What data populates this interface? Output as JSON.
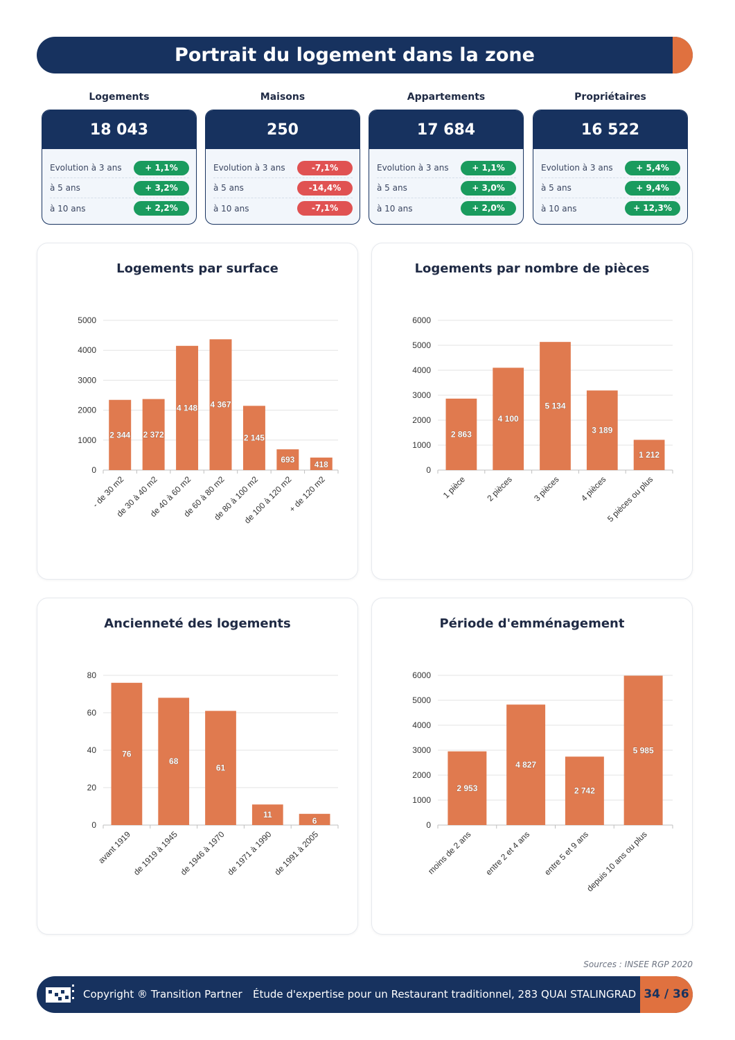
{
  "header": {
    "title": "Portrait du logement dans la zone"
  },
  "stats": [
    {
      "label": "Logements",
      "value": "18 043",
      "rows": [
        {
          "label": "Evolution à 3 ans",
          "value": "+ 1,1%",
          "trend": "pos"
        },
        {
          "label": "à 5 ans",
          "value": "+ 3,2%",
          "trend": "pos"
        },
        {
          "label": "à 10 ans",
          "value": "+ 2,2%",
          "trend": "pos"
        }
      ]
    },
    {
      "label": "Maisons",
      "value": "250",
      "rows": [
        {
          "label": "Evolution à 3 ans",
          "value": "-7,1%",
          "trend": "neg"
        },
        {
          "label": "à 5 ans",
          "value": "-14,4%",
          "trend": "neg"
        },
        {
          "label": "à 10 ans",
          "value": "-7,1%",
          "trend": "neg"
        }
      ]
    },
    {
      "label": "Appartements",
      "value": "17 684",
      "rows": [
        {
          "label": "Evolution à 3 ans",
          "value": "+ 1,1%",
          "trend": "pos"
        },
        {
          "label": "à 5 ans",
          "value": "+ 3,0%",
          "trend": "pos"
        },
        {
          "label": "à 10 ans",
          "value": "+ 2,0%",
          "trend": "pos"
        }
      ]
    },
    {
      "label": "Propriétaires",
      "value": "16 522",
      "rows": [
        {
          "label": "Evolution à 3 ans",
          "value": "+ 5,4%",
          "trend": "pos"
        },
        {
          "label": "à 5 ans",
          "value": "+ 9,4%",
          "trend": "pos"
        },
        {
          "label": "à 10 ans",
          "value": "+ 12,3%",
          "trend": "pos"
        }
      ]
    }
  ],
  "colors": {
    "navy": "#17325f",
    "orange": "#e0713f",
    "bar": "#e07a4f",
    "positive": "#1a9b5e",
    "negative": "#e05252"
  },
  "chart_data": [
    {
      "type": "bar",
      "title": "Logements par surface",
      "categories": [
        "- de 30 m2",
        "de 30 à 40 m2",
        "de 40 à 60 m2",
        "de 60 à 80 m2",
        "de 80 à 100 m2",
        "de 100 à 120 m2",
        "+ de 120 m2"
      ],
      "values": [
        2344,
        2372,
        4148,
        4367,
        2145,
        693,
        418
      ],
      "data_labels": [
        "2 344",
        "2 372",
        "4 148",
        "4 367",
        "2 145",
        "693",
        "418"
      ],
      "ylim": [
        0,
        5000
      ],
      "yticks": [
        0,
        1000,
        2000,
        3000,
        4000,
        5000
      ],
      "grid": true
    },
    {
      "type": "bar",
      "title": "Logements par nombre de pièces",
      "categories": [
        "1 pièce",
        "2 pièces",
        "3 pièces",
        "4 pièces",
        "5 pièces ou plus"
      ],
      "values": [
        2863,
        4100,
        5134,
        3189,
        1212
      ],
      "data_labels": [
        "2 863",
        "4 100",
        "5 134",
        "3 189",
        "1 212"
      ],
      "ylim": [
        0,
        6000
      ],
      "yticks": [
        0,
        1000,
        2000,
        3000,
        4000,
        5000,
        6000
      ],
      "grid": true
    },
    {
      "type": "bar",
      "title": "Ancienneté des logements",
      "categories": [
        "avant 1919",
        "de 1919 à 1945",
        "de 1946 à 1970",
        "de 1971 à 1990",
        "de 1991 à 2005"
      ],
      "values": [
        76,
        68,
        61,
        11,
        6
      ],
      "data_labels": [
        "76",
        "68",
        "61",
        "11",
        "6"
      ],
      "ylim": [
        0,
        80
      ],
      "yticks": [
        0,
        20,
        40,
        60,
        80
      ],
      "grid": true
    },
    {
      "type": "bar",
      "title": "Période d'emménagement",
      "categories": [
        "moins de 2 ans",
        "entre 2 et 4 ans",
        "entre 5 et 9 ans",
        "depuis 10 ans ou plus"
      ],
      "values": [
        2953,
        4827,
        2742,
        5985
      ],
      "data_labels": [
        "2 953",
        "4 827",
        "2 742",
        "5 985"
      ],
      "ylim": [
        0,
        6000
      ],
      "yticks": [
        0,
        1000,
        2000,
        3000,
        4000,
        5000,
        6000
      ],
      "grid": true
    }
  ],
  "sources": "Sources : INSEE RGP 2020",
  "footer": {
    "copyright": "Copyright ® Transition Partner",
    "study": "Étude d'expertise pour un Restaurant traditionnel, 283 QUAI STALINGRAD",
    "page": "34 / 36"
  }
}
